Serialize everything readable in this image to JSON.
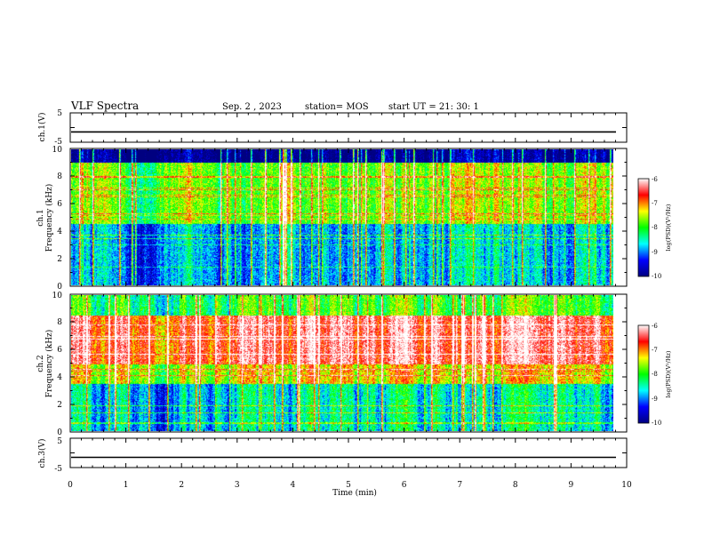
{
  "header": {
    "title": "VLF Spectra",
    "date": "Sep. 2 , 2023",
    "station": "station= MOS",
    "start": "start  UT =   21: 30: 1"
  },
  "chart_data": [
    {
      "type": "line",
      "panel": "ch1-waveform",
      "ylabel": "ch.1(V)",
      "ylim": [
        -5,
        5
      ],
      "yticks": [
        "5",
        "-5"
      ],
      "x": [
        0,
        10
      ],
      "values": [
        -1.5,
        -1.5
      ],
      "color": "#000000"
    },
    {
      "type": "heatmap",
      "panel": "ch1-spectrogram",
      "ylabel": "ch.1\nFrequency (kHz)",
      "xlim": [
        0,
        9.85
      ],
      "ylim": [
        0,
        10
      ],
      "yticks": [
        "0",
        "2",
        "4",
        "6",
        "8",
        "10"
      ],
      "colorbar": {
        "label": "log(PSD)(V²/Hz)",
        "range": [
          -10,
          -6
        ],
        "ticks": [
          "-6",
          "-7",
          "-8",
          "-9",
          "-10"
        ],
        "colors": [
          "#000080",
          "#0000ff",
          "#00ffff",
          "#00ff00",
          "#ffff00",
          "#ff0000",
          "#ffffff"
        ]
      },
      "bands": [
        {
          "f_min": 0,
          "f_max": 4.5,
          "level": -8.9
        },
        {
          "f_min": 4.5,
          "f_max": 9.0,
          "level": -7.8
        },
        {
          "f_min": 9.0,
          "f_max": 10,
          "level": -10
        }
      ],
      "impulses_per_min": 5
    },
    {
      "type": "heatmap",
      "panel": "ch2-spectrogram",
      "ylabel": "ch.2\nFrequency (kHz)",
      "xlim": [
        0,
        9.85
      ],
      "ylim": [
        0,
        10
      ],
      "yticks": [
        "0",
        "2",
        "4",
        "6",
        "8",
        "10"
      ],
      "colorbar": {
        "label": "log(PSD)(V²/Hz)",
        "range": [
          -10,
          -6
        ],
        "ticks": [
          "-6",
          "-7",
          "-8",
          "-9",
          "-10"
        ],
        "colors": [
          "#000080",
          "#0000ff",
          "#00ffff",
          "#00ff00",
          "#ffff00",
          "#ff0000",
          "#ffffff"
        ]
      },
      "bands": [
        {
          "f_min": 0,
          "f_max": 3.5,
          "level": -8.6
        },
        {
          "f_min": 3.5,
          "f_max": 5.0,
          "level": -7.4
        },
        {
          "f_min": 5.0,
          "f_max": 8.5,
          "level": -6.5
        },
        {
          "f_min": 8.5,
          "f_max": 10,
          "level": -8.0
        }
      ],
      "impulses_per_min": 4
    },
    {
      "type": "line",
      "panel": "ch3-waveform",
      "ylabel": "ch.3(V)",
      "ylim": [
        -5,
        5
      ],
      "yticks": [
        "5",
        "-5"
      ],
      "x": [
        0,
        10
      ],
      "values": [
        -1.5,
        -1.5
      ],
      "color": "#000000"
    }
  ],
  "xaxis": {
    "label": "Time  (min)",
    "ticks": [
      "0",
      "1",
      "2",
      "3",
      "4",
      "5",
      "6",
      "7",
      "8",
      "9",
      "10"
    ],
    "range": [
      0,
      10
    ]
  }
}
